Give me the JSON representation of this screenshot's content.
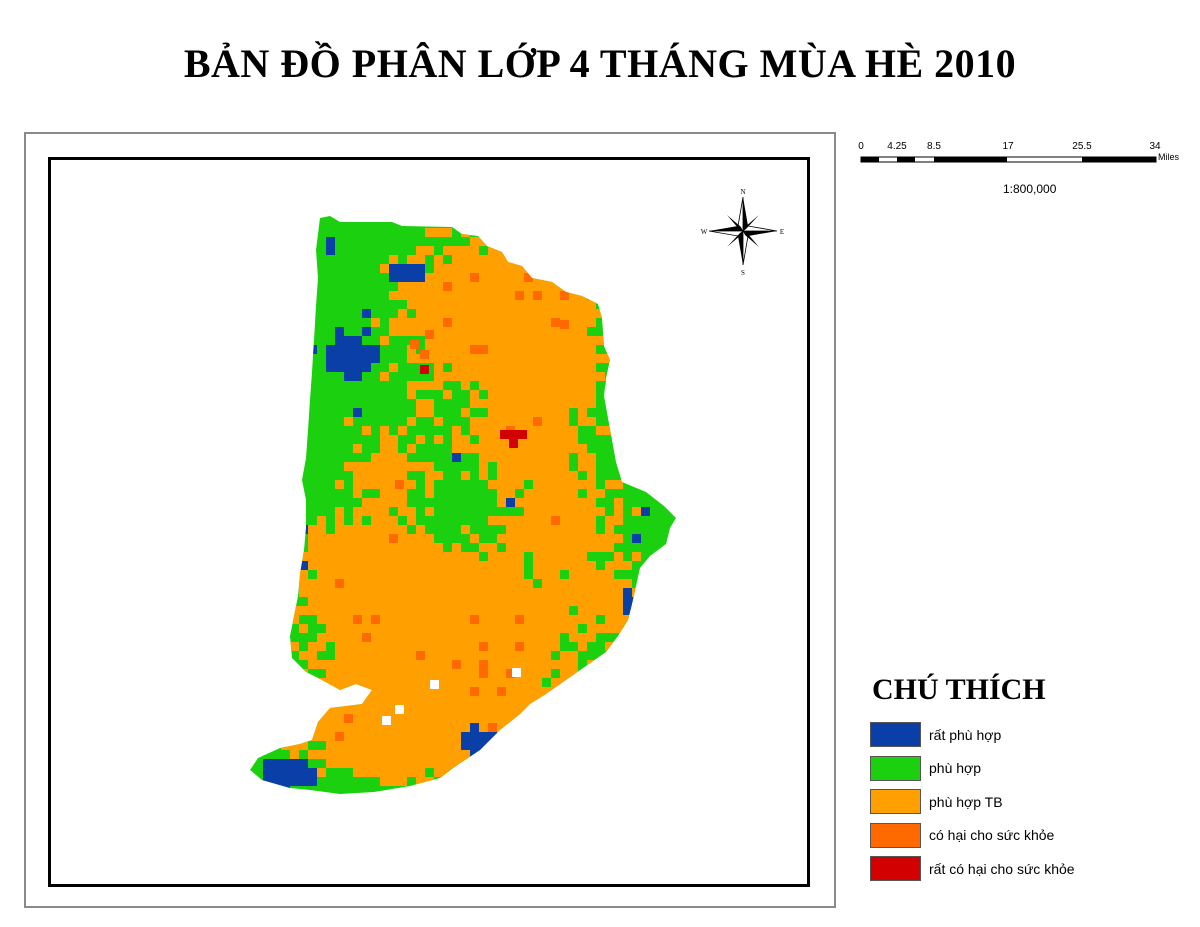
{
  "title": "BẢN ĐỒ PHÂN LỚP 4 THÁNG MÙA HÈ 2010",
  "north_arrow": {
    "icon": "compass-rose-icon",
    "n": "N",
    "s": "S",
    "e": "E",
    "w": "W"
  },
  "scale": {
    "ticks": [
      "0",
      "4.25",
      "8.5",
      "17",
      "25.5",
      "34"
    ],
    "tick_values": [
      0,
      4.25,
      8.5,
      17,
      25.5,
      34
    ],
    "unit": "Miles",
    "ratio": "1:800,000"
  },
  "legend": {
    "title": "CHÚ THÍCH",
    "items": [
      {
        "label": "rất phù hợp",
        "color": "#0b3fa8"
      },
      {
        "label": "phù hợp",
        "color": "#1bd10f"
      },
      {
        "label": "phù hợp TB",
        "color": "#ff9f00"
      },
      {
        "label": "có hại cho sức khỏe",
        "color": "#ff6a00"
      },
      {
        "label": "rất có hại cho sức khỏe",
        "color": "#d20000"
      }
    ]
  }
}
